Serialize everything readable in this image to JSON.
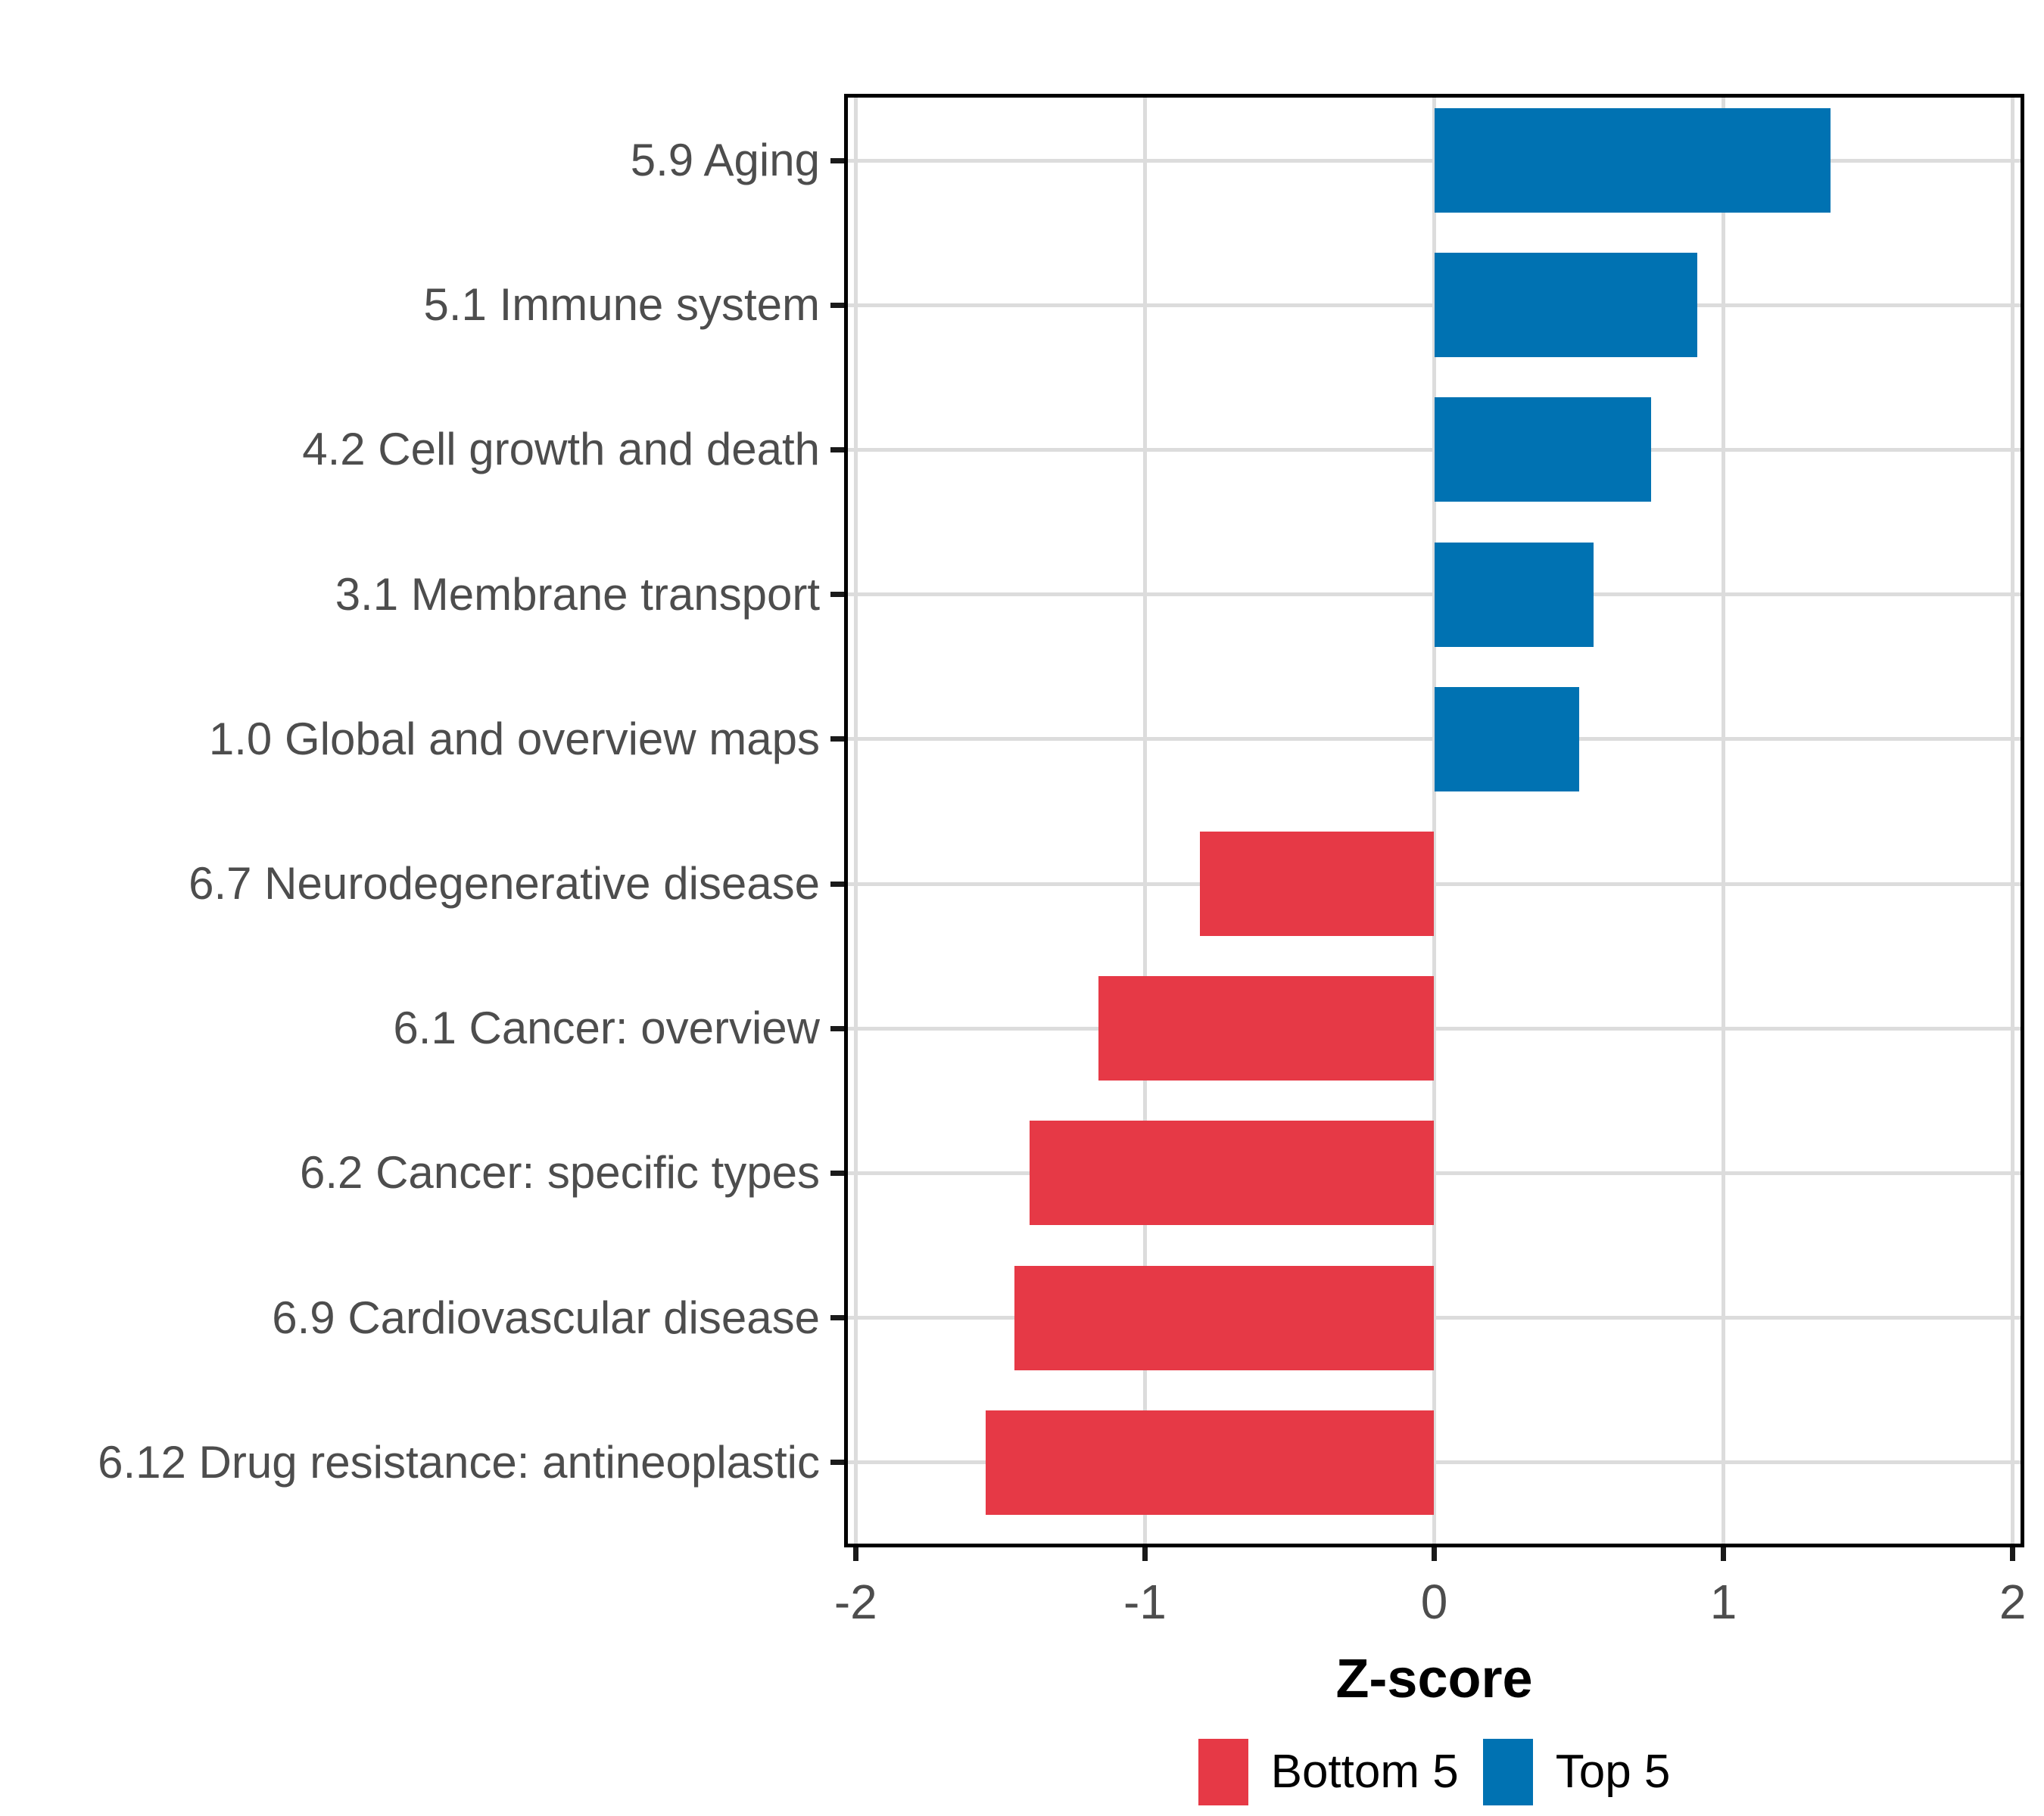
{
  "figure": {
    "background": "#ffffff"
  },
  "chart_data": {
    "type": "bar",
    "orientation": "horizontal",
    "title": "",
    "xlabel": "Z-score",
    "ylabel": "",
    "xlim": [
      -2.04,
      2.04
    ],
    "x_ticks": [
      {
        "value": -2,
        "label": "-2"
      },
      {
        "value": -1,
        "label": "-1"
      },
      {
        "value": 0,
        "label": "0"
      },
      {
        "value": 1,
        "label": "1"
      },
      {
        "value": 2,
        "label": "2"
      }
    ],
    "grid": true,
    "grid_color": "#dcdcdc",
    "axis_text_color": "#4d4d4d",
    "panel_border_color": "#000000",
    "bars": [
      {
        "label": "5.9 Aging",
        "value": 1.37,
        "group": "Top 5"
      },
      {
        "label": "5.1 Immune system",
        "value": 0.91,
        "group": "Top 5"
      },
      {
        "label": "4.2 Cell growth and death",
        "value": 0.75,
        "group": "Top 5"
      },
      {
        "label": "3.1 Membrane transport",
        "value": 0.55,
        "group": "Top 5"
      },
      {
        "label": "1.0 Global and overview maps",
        "value": 0.5,
        "group": "Top 5"
      },
      {
        "label": "6.7 Neurodegenerative disease",
        "value": -0.81,
        "group": "Bottom 5"
      },
      {
        "label": "6.1 Cancer: overview",
        "value": -1.16,
        "group": "Bottom 5"
      },
      {
        "label": "6.2 Cancer: specific types",
        "value": -1.4,
        "group": "Bottom 5"
      },
      {
        "label": "6.9 Cardiovascular disease",
        "value": -1.45,
        "group": "Bottom 5"
      },
      {
        "label": "6.12 Drug resistance: antineoplastic",
        "value": -1.55,
        "group": "Bottom 5"
      }
    ],
    "colors": {
      "Bottom 5": "#e63946",
      "Top 5": "#0072b2"
    },
    "legend": {
      "position": "bottom",
      "entries": [
        {
          "label": "Bottom 5",
          "color": "#e63946"
        },
        {
          "label": "Top 5",
          "color": "#0072b2"
        }
      ]
    }
  }
}
